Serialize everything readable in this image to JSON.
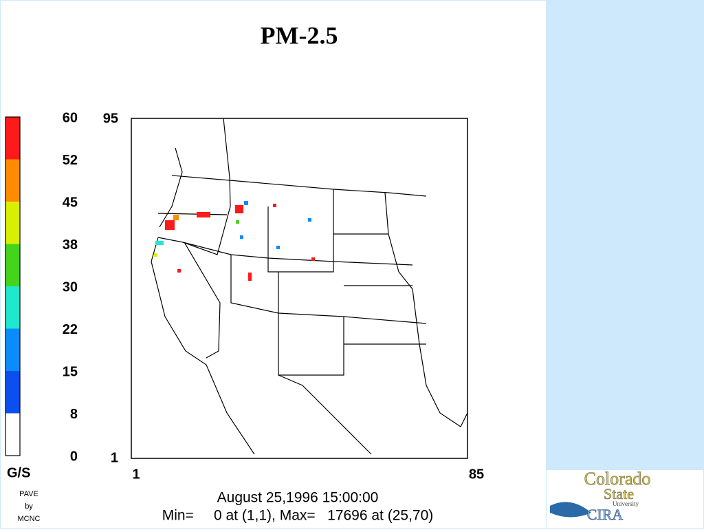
{
  "title": "PM-2.5",
  "colorbar": {
    "unit": "G/S",
    "ticks": [
      60,
      52,
      45,
      38,
      30,
      22,
      15,
      8,
      0
    ],
    "colors": [
      "#ff1a1a",
      "#ff8c00",
      "#d8f000",
      "#44d41c",
      "#1ee8d0",
      "#0a8cff",
      "#0a50f0",
      "#ffffff"
    ]
  },
  "axes": {
    "y_top": "95",
    "y_bottom": "1",
    "x_left": "1",
    "x_right": "85"
  },
  "footer": {
    "date": "August 25,1996 15:00:00",
    "stats": "Min=     0 at (1,1), Max=   17696 at (25,70)"
  },
  "credit": [
    "PAVE",
    "by",
    "MCNC"
  ],
  "logo": {
    "line1": "Colorado",
    "line2": "State",
    "line3": "University",
    "line4": "CIRA"
  }
}
